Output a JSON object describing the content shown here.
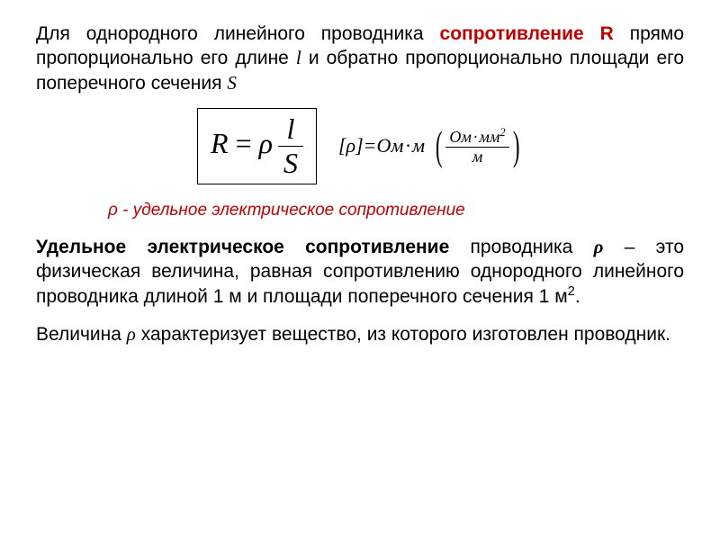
{
  "colors": {
    "text": "#000000",
    "accent": "#c00000",
    "background": "#ffffff",
    "border": "#000000"
  },
  "typography": {
    "body_family": "Arial",
    "body_size_pt": 16,
    "formula_family": "Times New Roman",
    "formula_size_pt": 24,
    "caption_size_pt": 14
  },
  "para1": {
    "lead": "Для однородного линейного проводника ",
    "term": "сопротивление R",
    "tail1": " прямо пропорционально его длине ",
    "l": "l",
    "tail2": " и обратно пропорционально площади его поперечного сечения ",
    "S": "S"
  },
  "formula": {
    "lhs": "R",
    "eq": " = ",
    "rho": "ρ",
    "frac_num": "l",
    "frac_den": "S"
  },
  "units": {
    "open": "[",
    "sym": "ρ",
    "close": "]",
    "eq": "=",
    "ohm": "Ом",
    "dot": "·",
    "m": "м",
    "mm": "мм",
    "sq": "2"
  },
  "caption": {
    "sym": "ρ",
    "dash": " - ",
    "text": "удельное электрическое сопротивление"
  },
  "para2": {
    "term": "Удельное электрическое сопротивление",
    "mid1": " проводника ",
    "rho": "ρ",
    "mid2": " – это физическая величина, равная сопротивлению однородного линейного проводника длиной 1 м и площади поперечного сечения 1 м",
    "sq": "2",
    "end": "."
  },
  "para3": {
    "pre": "Величина ",
    "rho": "ρ",
    "post": "  характеризует вещество, из которого изготовлен проводник."
  }
}
